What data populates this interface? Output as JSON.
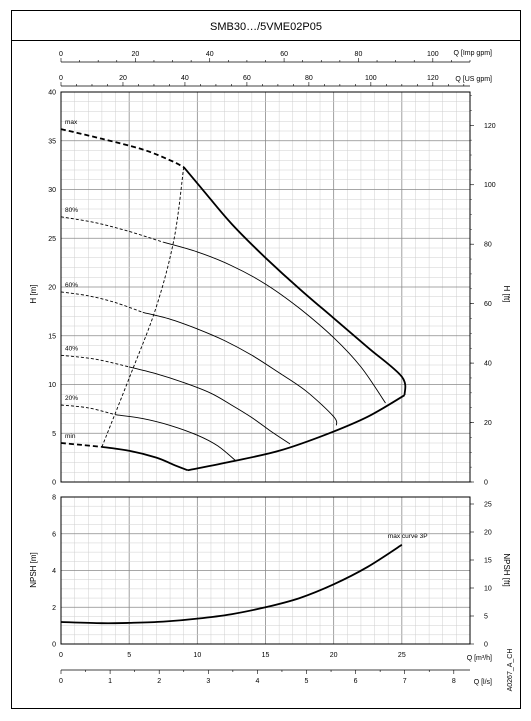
{
  "chart_data": [
    {
      "type": "line",
      "title": "SMB30…/5VME02P05",
      "top_axes": [
        {
          "label": "Q [Imp gpm]",
          "min": 0,
          "max": 110,
          "ticks": [
            0,
            20,
            40,
            60,
            80,
            100
          ]
        },
        {
          "label": "Q [US gpm]",
          "min": 0,
          "max": 132,
          "ticks": [
            0,
            20,
            40,
            60,
            80,
            100,
            120
          ]
        }
      ],
      "xlim": [
        0,
        30
      ],
      "ylabel": "H [m]",
      "ylim": [
        0,
        40
      ],
      "yticks": [
        0,
        5,
        10,
        15,
        20,
        25,
        30,
        35,
        40
      ],
      "ylabel_right": "H [ft]",
      "ylim_right": [
        0,
        131.2
      ],
      "yticks_right": [
        0,
        20,
        40,
        60,
        80,
        100,
        120
      ],
      "grid": true,
      "series": [
        {
          "name": "max",
          "solid": [
            [
              9,
              32.3
            ],
            [
              10.5,
              29.8
            ],
            [
              12.5,
              26.5
            ],
            [
              15,
              23
            ],
            [
              17.5,
              19.8
            ],
            [
              20,
              16.8
            ],
            [
              22.5,
              13.8
            ],
            [
              25,
              10.8
            ],
            [
              25.2,
              8.9
            ]
          ],
          "dashed": [
            [
              0,
              36.2
            ],
            [
              3,
              35.2
            ],
            [
              6,
              34.1
            ],
            [
              8,
              33
            ],
            [
              9,
              32.3
            ]
          ]
        },
        {
          "name": "80%",
          "solid": [
            [
              7.5,
              24.6
            ],
            [
              10,
              23.6
            ],
            [
              12.5,
              22.2
            ],
            [
              15,
              20.3
            ],
            [
              17.5,
              17.8
            ],
            [
              20,
              14.8
            ],
            [
              22,
              11.8
            ],
            [
              23.8,
              8.1
            ]
          ],
          "dashed": [
            [
              0,
              27.2
            ],
            [
              2.5,
              26.6
            ],
            [
              5,
              25.7
            ],
            [
              7.5,
              24.6
            ]
          ]
        },
        {
          "name": "60%",
          "solid": [
            [
              6,
              17.4
            ],
            [
              8,
              16.7
            ],
            [
              10,
              15.7
            ],
            [
              12,
              14.5
            ],
            [
              14,
              13
            ],
            [
              16,
              11.2
            ],
            [
              18,
              9.3
            ],
            [
              20,
              6.7
            ],
            [
              20.2,
              5.8
            ]
          ],
          "dashed": [
            [
              0,
              19.5
            ],
            [
              2,
              19.1
            ],
            [
              4,
              18.4
            ],
            [
              6,
              17.4
            ]
          ]
        },
        {
          "name": "40%",
          "solid": [
            [
              5,
              11.8
            ],
            [
              7,
              11.1
            ],
            [
              9,
              10.2
            ],
            [
              11,
              9.1
            ],
            [
              12.5,
              7.9
            ],
            [
              14,
              6.6
            ],
            [
              15.5,
              5.1
            ],
            [
              16.8,
              3.9
            ]
          ],
          "dashed": [
            [
              0,
              13
            ],
            [
              2.5,
              12.6
            ],
            [
              5,
              11.8
            ]
          ]
        },
        {
          "name": "20%",
          "solid": [
            [
              4,
              6.9
            ],
            [
              6,
              6.5
            ],
            [
              8,
              5.8
            ],
            [
              10,
              4.8
            ],
            [
              11.5,
              3.7
            ],
            [
              12.8,
              2.2
            ]
          ],
          "dashed": [
            [
              0,
              7.9
            ],
            [
              2,
              7.6
            ],
            [
              4,
              6.9
            ]
          ]
        },
        {
          "name": "min",
          "solid": [
            [
              3,
              3.6
            ],
            [
              5,
              3.2
            ],
            [
              7,
              2.5
            ],
            [
              8.2,
              1.8
            ],
            [
              9.3,
              1.2
            ]
          ],
          "dashed": [
            [
              0,
              4
            ],
            [
              1.5,
              3.8
            ],
            [
              3,
              3.6
            ]
          ]
        }
      ],
      "operating_limit": [
        [
          9.3,
          1.2
        ],
        [
          12.5,
          2.1
        ],
        [
          16,
          3.2
        ],
        [
          19.5,
          4.9
        ],
        [
          22.5,
          6.7
        ],
        [
          25.2,
          8.9
        ]
      ],
      "minimum_flow_dashed": [
        [
          3,
          3.6
        ],
        [
          5.1,
          11
        ],
        [
          7,
          18
        ],
        [
          8.3,
          25
        ],
        [
          9,
          32.3
        ]
      ]
    },
    {
      "type": "line",
      "xlabel": "Q [m³/h]",
      "xlim": [
        0,
        30
      ],
      "xticks": [
        0,
        5,
        10,
        15,
        20,
        25
      ],
      "xlabel_secondary": "Q [l/s]",
      "xlim_secondary": [
        0,
        8.33
      ],
      "xticks_secondary": [
        0,
        1,
        2,
        3,
        4,
        5,
        6,
        7,
        8
      ],
      "ylabel": "NPSH [m]",
      "ylim": [
        0,
        8
      ],
      "yticks": [
        0,
        2,
        4,
        6,
        8
      ],
      "ylabel_right": "NPSH [ft]",
      "ylim_right": [
        0,
        26.25
      ],
      "yticks_right": [
        0,
        5,
        10,
        15,
        20,
        25
      ],
      "grid": true,
      "series": [
        {
          "name": "max curve 3P",
          "points": [
            [
              0,
              1.2
            ],
            [
              3,
              1.13
            ],
            [
              5,
              1.15
            ],
            [
              7.5,
              1.22
            ],
            [
              10,
              1.38
            ],
            [
              12.5,
              1.62
            ],
            [
              15,
              2
            ],
            [
              17.5,
              2.5
            ],
            [
              20,
              3.25
            ],
            [
              22.5,
              4.2
            ],
            [
              25,
              5.4
            ]
          ]
        }
      ]
    }
  ],
  "side_code": "A0267_A_CH"
}
